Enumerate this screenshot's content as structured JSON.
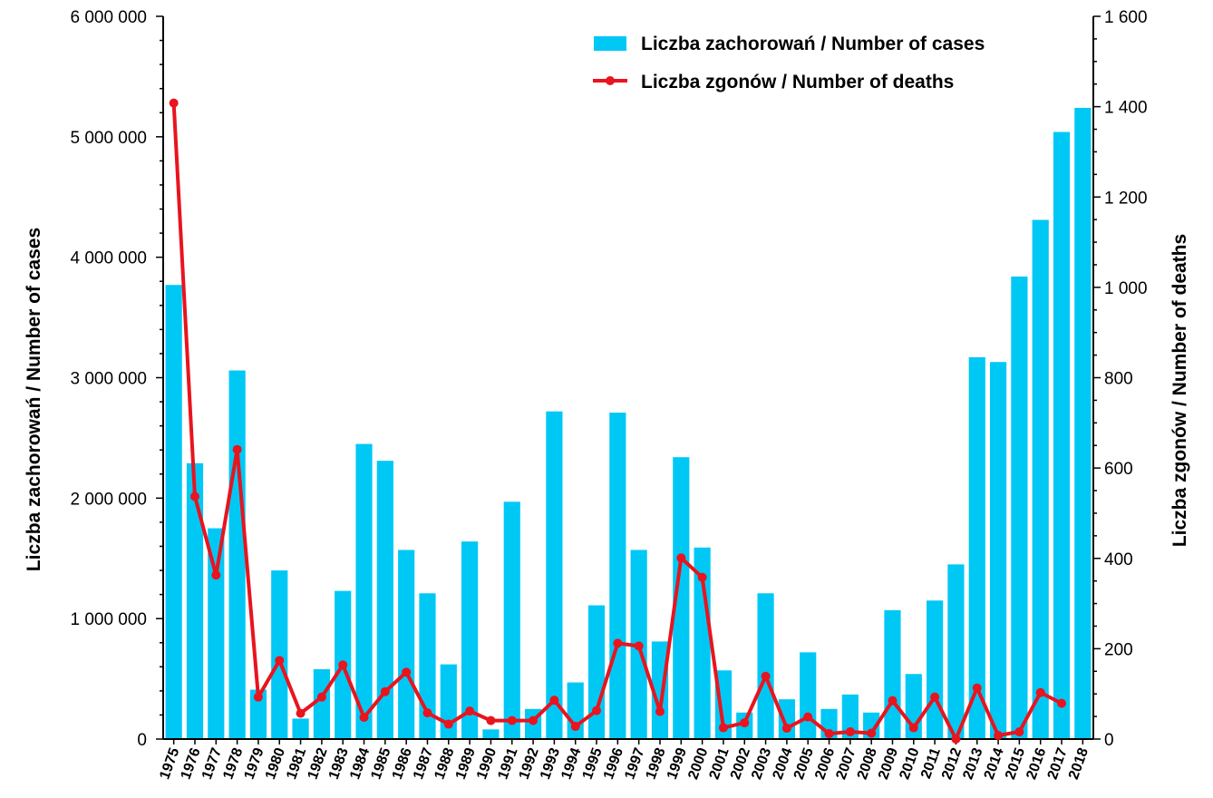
{
  "chart_data": {
    "type": "bar",
    "categories": [
      "1975",
      "1976",
      "1977",
      "1978",
      "1979",
      "1980",
      "1981",
      "1982",
      "1983",
      "1984",
      "1985",
      "1986",
      "1987",
      "1988",
      "1989",
      "1990",
      "1991",
      "1992",
      "1993",
      "1994",
      "1995",
      "1996",
      "1997",
      "1998",
      "1999",
      "2000",
      "2001",
      "2002",
      "2003",
      "2004",
      "2005",
      "2006",
      "2007",
      "2008",
      "2009",
      "2010",
      "2011",
      "2012",
      "2013",
      "2014",
      "2015",
      "2016",
      "2017",
      "2018"
    ],
    "series": [
      {
        "name": "Liczba zachorowań / Number of cases",
        "type": "bar",
        "axis": "left",
        "color": "#00C8F5",
        "values": [
          3770000,
          2290000,
          1750000,
          3060000,
          410000,
          1400000,
          170000,
          580000,
          1230000,
          2450000,
          2310000,
          1570000,
          1210000,
          620000,
          1640000,
          80000,
          1970000,
          250000,
          2720000,
          470000,
          1110000,
          2710000,
          1570000,
          810000,
          2340000,
          1590000,
          570000,
          220000,
          1210000,
          330000,
          720000,
          250000,
          370000,
          220000,
          1070000,
          540000,
          1150000,
          1450000,
          3170000,
          3130000,
          3840000,
          4310000,
          5040000,
          5240000
        ]
      },
      {
        "name": "Liczba zgonów / Number of deaths",
        "type": "line",
        "axis": "right",
        "color": "#E8141E",
        "values": [
          1408,
          537,
          363,
          641,
          93,
          174,
          57,
          93,
          164,
          48,
          105,
          148,
          58,
          33,
          62,
          41,
          41,
          41,
          86,
          28,
          63,
          212,
          206,
          61,
          401,
          358,
          25,
          36,
          139,
          24,
          49,
          12,
          16,
          13,
          85,
          25,
          93,
          0,
          113,
          8,
          16,
          103,
          79,
          null
        ]
      }
    ],
    "xlabel": "",
    "ylabel": "Liczba zachorowań  /  Number of cases",
    "ylabel_right": "Liczba zgonów  /  Number of deaths",
    "ylim": [
      0,
      6000000
    ],
    "ylim_right": [
      0,
      1600
    ],
    "yticks": [
      0,
      1000000,
      2000000,
      3000000,
      4000000,
      5000000,
      6000000
    ],
    "ytick_labels": [
      "0",
      "1 000 000",
      "2 000 000",
      "3 000 000",
      "4 000 000",
      "5 000 000",
      "6 000 000"
    ],
    "yticks_right": [
      0,
      200,
      400,
      600,
      800,
      1000,
      1200,
      1400,
      1600
    ],
    "ytick_labels_right": [
      "0",
      "200",
      "400",
      "600",
      "800",
      "1 000",
      "1 200",
      "1 400",
      "1 600"
    ],
    "grid": false,
    "legend_position": "top-right"
  }
}
